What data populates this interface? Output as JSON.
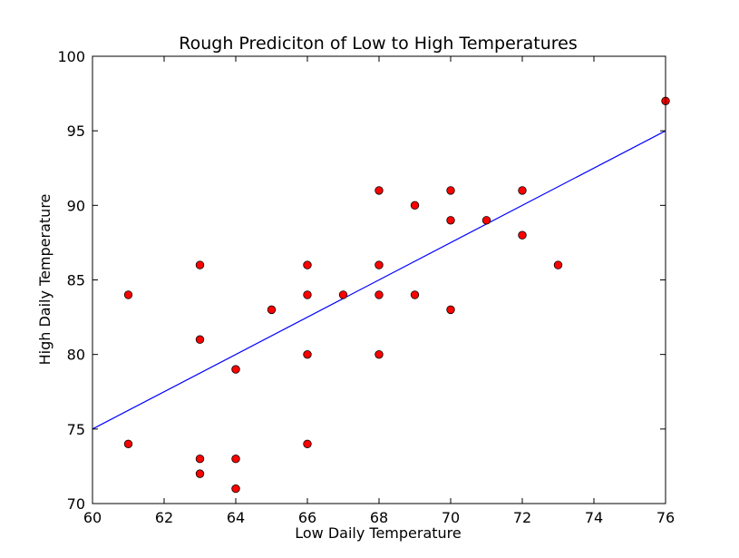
{
  "chart_data": {
    "type": "scatter",
    "title": "Rough Prediciton of Low to High Temperatures",
    "xlabel": "Low Daily Temperature",
    "ylabel": "High Daily Temperature",
    "xlim": [
      60,
      76
    ],
    "ylim": [
      70,
      100
    ],
    "xticks": [
      60,
      62,
      64,
      66,
      68,
      70,
      72,
      74,
      76
    ],
    "yticks": [
      70,
      75,
      80,
      85,
      90,
      95,
      100
    ],
    "grid": false,
    "points": [
      {
        "x": 61,
        "y": 84
      },
      {
        "x": 61,
        "y": 74
      },
      {
        "x": 63,
        "y": 86
      },
      {
        "x": 63,
        "y": 81
      },
      {
        "x": 63,
        "y": 73
      },
      {
        "x": 63,
        "y": 72
      },
      {
        "x": 64,
        "y": 79
      },
      {
        "x": 64,
        "y": 73
      },
      {
        "x": 64,
        "y": 71
      },
      {
        "x": 65,
        "y": 83
      },
      {
        "x": 66,
        "y": 86
      },
      {
        "x": 66,
        "y": 84
      },
      {
        "x": 66,
        "y": 80
      },
      {
        "x": 66,
        "y": 74
      },
      {
        "x": 67,
        "y": 84
      },
      {
        "x": 68,
        "y": 91
      },
      {
        "x": 68,
        "y": 86
      },
      {
        "x": 68,
        "y": 84
      },
      {
        "x": 68,
        "y": 80
      },
      {
        "x": 69,
        "y": 90
      },
      {
        "x": 69,
        "y": 84
      },
      {
        "x": 70,
        "y": 91
      },
      {
        "x": 70,
        "y": 89
      },
      {
        "x": 70,
        "y": 83
      },
      {
        "x": 71,
        "y": 89
      },
      {
        "x": 72,
        "y": 91
      },
      {
        "x": 72,
        "y": 88
      },
      {
        "x": 73,
        "y": 86
      },
      {
        "x": 76,
        "y": 97
      }
    ],
    "fit_line": {
      "x": [
        60,
        76
      ],
      "y": [
        75,
        95
      ]
    },
    "colors": {
      "points": "#ff0000",
      "point_edge": "#000000",
      "line": "#0000ff",
      "axes": "#000000"
    }
  }
}
